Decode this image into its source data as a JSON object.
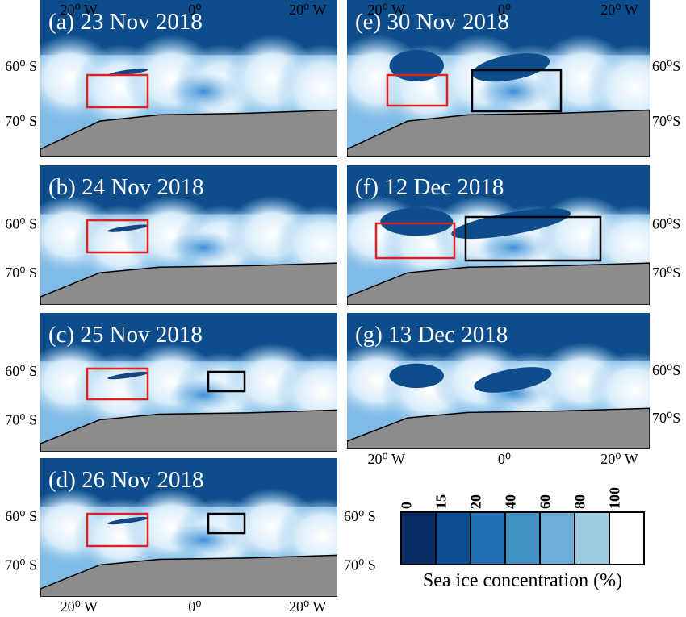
{
  "panels": [
    {
      "title": "(a) 23 Nov 2018"
    },
    {
      "title": "(b) 24 Nov 2018"
    },
    {
      "title": "(c) 25 Nov 2018"
    },
    {
      "title": "(d) 26 Nov 2018"
    },
    {
      "title": "(e) 30 Nov 2018"
    },
    {
      "title": "(f) 12 Dec 2018"
    },
    {
      "title": "(g) 13 Dec 2018"
    }
  ],
  "axis_labels": {
    "lon": [
      "20⁰ W",
      "0⁰",
      "20⁰ W"
    ],
    "lat": [
      "60⁰ S",
      "70⁰ S"
    ],
    "lat_right": [
      "60⁰S",
      "70⁰S"
    ]
  },
  "colorbar": {
    "labels": [
      "0",
      "15",
      "20",
      "40",
      "60",
      "80",
      "100"
    ],
    "title": "Sea ice concentration (%)"
  }
}
